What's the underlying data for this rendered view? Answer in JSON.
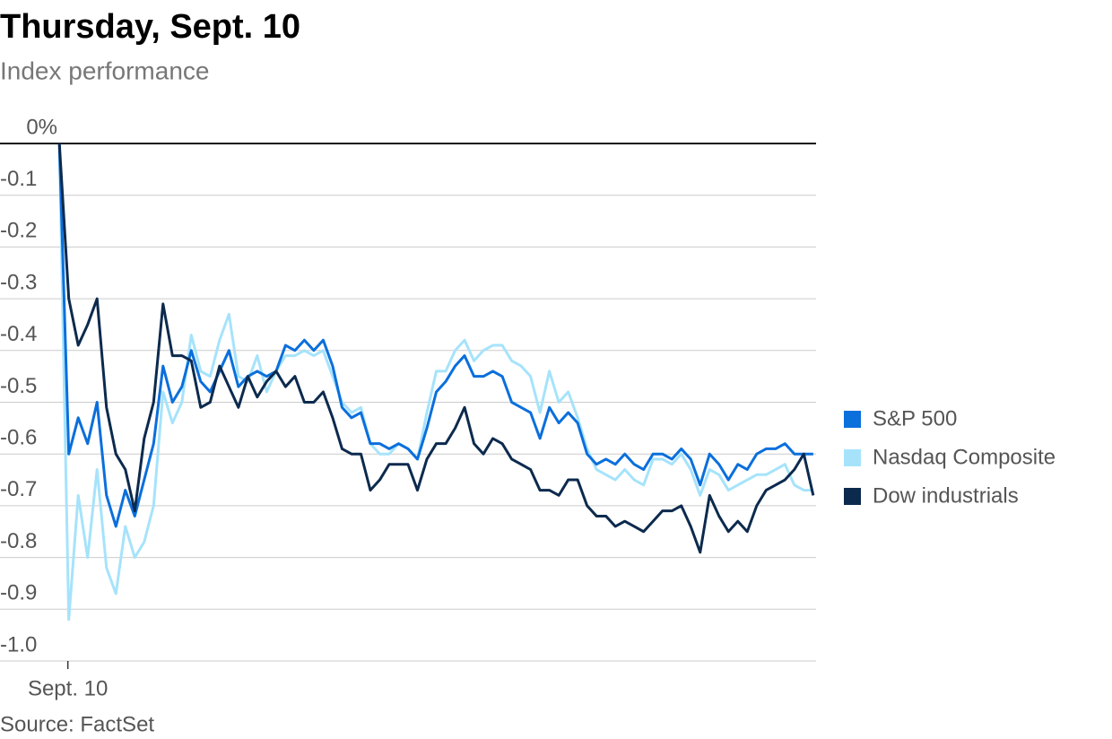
{
  "chart_data": {
    "type": "line",
    "title": "Thursday, Sept. 10",
    "subtitle": "Index performance",
    "source": "Source: FactSet",
    "x": [
      0,
      1,
      2,
      3,
      4,
      5,
      6,
      7,
      8,
      9,
      10,
      11,
      12,
      13,
      14,
      15,
      16,
      17,
      18,
      19,
      20,
      21,
      22,
      23,
      24,
      25,
      26,
      27,
      28,
      29,
      30,
      31,
      32,
      33,
      34,
      35,
      36,
      37,
      38,
      39,
      40,
      41,
      42,
      43,
      44,
      45,
      46,
      47,
      48,
      49,
      50,
      51,
      52,
      53,
      54,
      55,
      56,
      57,
      58,
      59,
      60,
      61,
      62,
      63,
      64,
      65,
      66,
      67,
      68,
      69,
      70,
      71,
      72,
      73,
      74,
      75,
      76,
      77,
      78,
      79,
      80
    ],
    "xlim": [
      -6.3,
      80.3
    ],
    "xticks": [
      {
        "value": 0.9,
        "label": "Sept. 10"
      }
    ],
    "ylim": [
      -1,
      0
    ],
    "yticks": [
      {
        "value": 0,
        "label": "0%"
      },
      -0.1,
      -0.2,
      -0.3,
      -0.4,
      -0.5,
      -0.6,
      -0.7,
      -0.8,
      -0.9,
      {
        "value": -1,
        "label": "-1.0"
      }
    ],
    "grid": true,
    "legend": "right",
    "series": [
      {
        "name": "S&P 500",
        "color": "#0b6fdc",
        "values": [
          0,
          -0.6,
          -0.53,
          -0.58,
          -0.5,
          -0.68,
          -0.74,
          -0.67,
          -0.72,
          -0.65,
          -0.58,
          -0.43,
          -0.5,
          -0.47,
          -0.4,
          -0.46,
          -0.48,
          -0.44,
          -0.4,
          -0.47,
          -0.45,
          -0.44,
          -0.45,
          -0.44,
          -0.39,
          -0.4,
          -0.38,
          -0.4,
          -0.38,
          -0.43,
          -0.51,
          -0.53,
          -0.52,
          -0.58,
          -0.58,
          -0.59,
          -0.58,
          -0.59,
          -0.61,
          -0.55,
          -0.48,
          -0.46,
          -0.43,
          -0.41,
          -0.45,
          -0.45,
          -0.44,
          -0.45,
          -0.5,
          -0.51,
          -0.52,
          -0.57,
          -0.51,
          -0.54,
          -0.52,
          -0.54,
          -0.6,
          -0.62,
          -0.61,
          -0.62,
          -0.6,
          -0.62,
          -0.63,
          -0.6,
          -0.6,
          -0.61,
          -0.59,
          -0.61,
          -0.66,
          -0.6,
          -0.62,
          -0.65,
          -0.62,
          -0.63,
          -0.6,
          -0.59,
          -0.59,
          -0.58,
          -0.6,
          -0.6,
          -0.6
        ]
      },
      {
        "name": "Nasdaq Composite",
        "color": "#a6e3fb",
        "values": [
          0,
          -0.92,
          -0.68,
          -0.8,
          -0.63,
          -0.82,
          -0.87,
          -0.74,
          -0.8,
          -0.77,
          -0.7,
          -0.48,
          -0.54,
          -0.5,
          -0.37,
          -0.44,
          -0.45,
          -0.38,
          -0.33,
          -0.45,
          -0.46,
          -0.41,
          -0.48,
          -0.44,
          -0.41,
          -0.41,
          -0.4,
          -0.41,
          -0.4,
          -0.45,
          -0.5,
          -0.52,
          -0.51,
          -0.58,
          -0.6,
          -0.6,
          -0.58,
          -0.59,
          -0.61,
          -0.52,
          -0.44,
          -0.44,
          -0.4,
          -0.38,
          -0.42,
          -0.4,
          -0.39,
          -0.39,
          -0.42,
          -0.43,
          -0.45,
          -0.52,
          -0.44,
          -0.5,
          -0.48,
          -0.53,
          -0.59,
          -0.63,
          -0.64,
          -0.65,
          -0.63,
          -0.65,
          -0.66,
          -0.61,
          -0.61,
          -0.62,
          -0.6,
          -0.63,
          -0.68,
          -0.63,
          -0.64,
          -0.67,
          -0.66,
          -0.65,
          -0.64,
          -0.64,
          -0.63,
          -0.62,
          -0.66,
          -0.67,
          -0.67
        ]
      },
      {
        "name": "Dow industrials",
        "color": "#0c2a4d",
        "values": [
          0,
          -0.3,
          -0.39,
          -0.35,
          -0.3,
          -0.51,
          -0.6,
          -0.63,
          -0.71,
          -0.57,
          -0.5,
          -0.31,
          -0.41,
          -0.41,
          -0.42,
          -0.51,
          -0.5,
          -0.43,
          -0.47,
          -0.51,
          -0.45,
          -0.49,
          -0.46,
          -0.44,
          -0.47,
          -0.45,
          -0.5,
          -0.5,
          -0.48,
          -0.53,
          -0.59,
          -0.6,
          -0.6,
          -0.67,
          -0.65,
          -0.62,
          -0.62,
          -0.62,
          -0.67,
          -0.61,
          -0.58,
          -0.58,
          -0.55,
          -0.51,
          -0.58,
          -0.6,
          -0.57,
          -0.58,
          -0.61,
          -0.62,
          -0.63,
          -0.67,
          -0.67,
          -0.68,
          -0.65,
          -0.65,
          -0.7,
          -0.72,
          -0.72,
          -0.74,
          -0.73,
          -0.74,
          -0.75,
          -0.73,
          -0.71,
          -0.71,
          -0.7,
          -0.74,
          -0.79,
          -0.68,
          -0.72,
          -0.75,
          -0.73,
          -0.75,
          -0.7,
          -0.67,
          -0.66,
          -0.65,
          -0.63,
          -0.6,
          -0.68
        ]
      }
    ]
  }
}
